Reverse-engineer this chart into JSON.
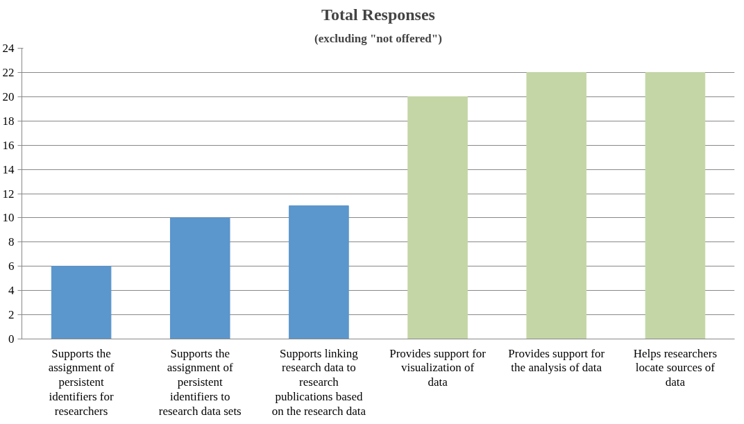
{
  "chart_data": {
    "type": "bar",
    "title": "Total Responses",
    "subtitle": "(excluding \"not offered\")",
    "categories": [
      "Supports the assignment of persistent identifiers for researchers",
      "Supports the assignment of persistent identifiers to research data sets",
      "Supports linking research data to research publications based on the research data",
      "Provides support for visualization of data",
      "Provides support for the analysis of data",
      "Helps researchers locate sources of data"
    ],
    "values": [
      6,
      10,
      11,
      20,
      22,
      22
    ],
    "colors": [
      "#5b96cc",
      "#5b96cc",
      "#5b96cc",
      "#c4d6a6",
      "#c4d6a6",
      "#c4d6a6"
    ],
    "ylim": [
      0,
      24
    ],
    "yticks": [
      0,
      2,
      4,
      6,
      8,
      10,
      12,
      14,
      16,
      18,
      20,
      22,
      24
    ],
    "grid": "y"
  }
}
